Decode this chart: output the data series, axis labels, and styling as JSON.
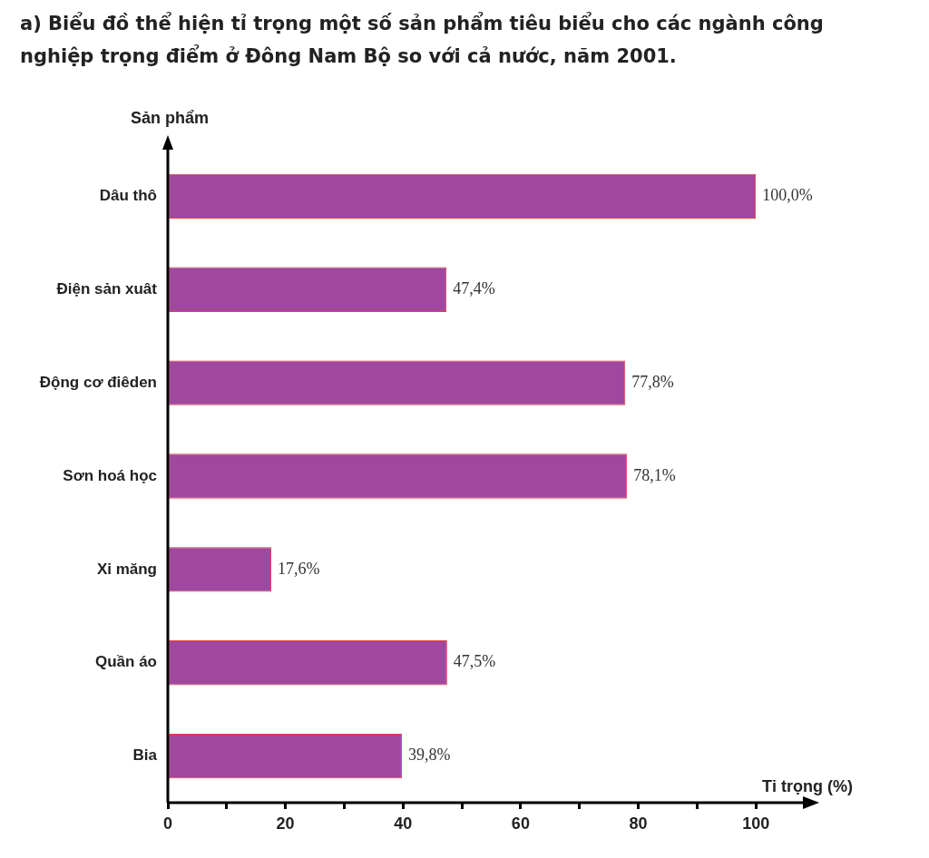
{
  "chart_data": {
    "type": "bar",
    "orientation": "horizontal",
    "title": "a) Biểu đồ thể hiện tỉ trọng một số sản phẩm tiêu biểu cho các ngành công nghiệp trọng điểm ở Đông Nam Bộ so với cả nước, năm 2001.",
    "ylabel": "Sản phẩm",
    "xlabel": "Tỉ trọng (%)",
    "categories": [
      "Dâu thô",
      "Điện sản xuât",
      "Động cơ điêden",
      "Sơn hoá học",
      "Xi măng",
      "Quần áo",
      "Bia"
    ],
    "values": [
      100.0,
      47.4,
      77.8,
      78.1,
      17.6,
      47.5,
      39.8
    ],
    "value_labels": [
      "100,0%",
      "47,4%",
      "77,8%",
      "78,1%",
      "17,6%",
      "47,5%",
      "39,8%"
    ],
    "color": "#a0479f",
    "xlim": [
      0,
      108
    ],
    "xticks": [
      0,
      {
        "value": 10,
        "label": null
      },
      20,
      {
        "value": 30,
        "label": null
      },
      40,
      {
        "value": 50,
        "label": null
      },
      60,
      {
        "value": 70,
        "label": null
      },
      80,
      {
        "value": 90,
        "label": null
      },
      100
    ],
    "grid": false,
    "legend": false
  }
}
